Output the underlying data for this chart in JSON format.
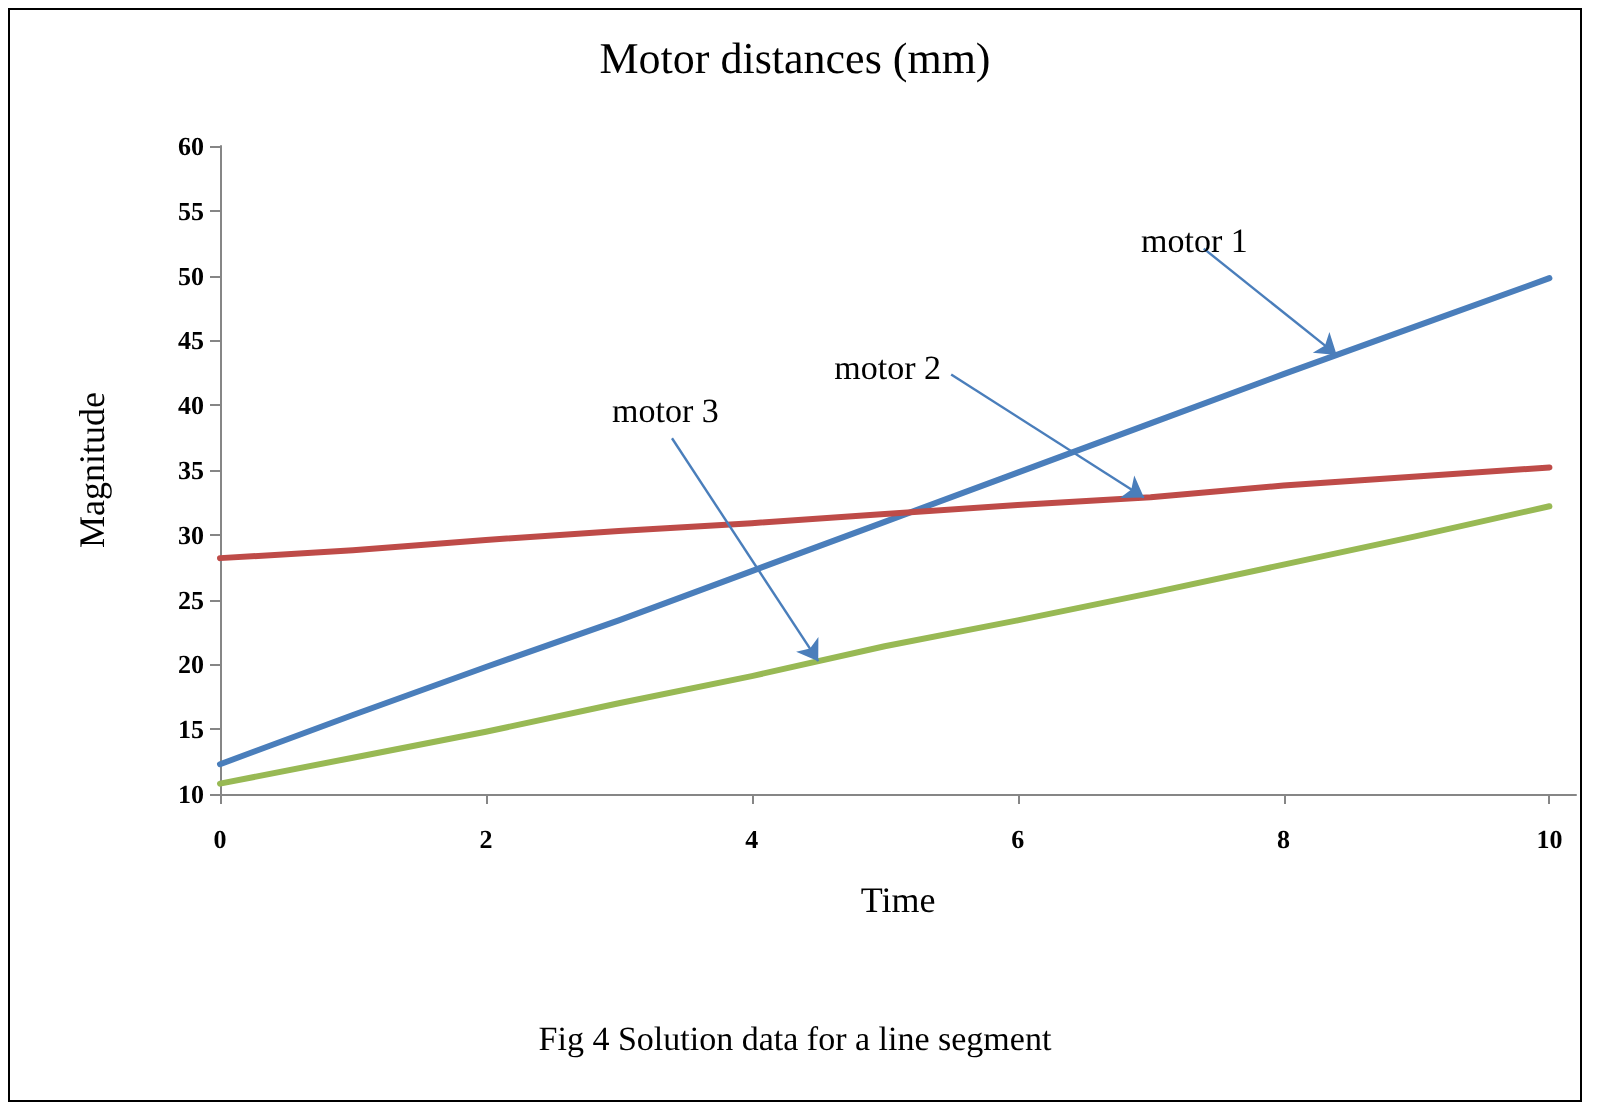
{
  "chart_data": {
    "type": "line",
    "title": "Motor distances (mm)",
    "xlabel": "Time",
    "ylabel": "Magnitude",
    "x": [
      0,
      1,
      2,
      3,
      4,
      5,
      6,
      7,
      8,
      9,
      10
    ],
    "series": [
      {
        "name": "motor 1",
        "color": "#4a7ebb",
        "values": [
          12.3,
          16.1,
          19.8,
          23.4,
          27.2,
          31.0,
          34.8,
          38.6,
          42.4,
          46.1,
          49.8
        ]
      },
      {
        "name": "motor 2",
        "color": "#be4b48",
        "values": [
          28.2,
          28.8,
          29.6,
          30.3,
          30.9,
          31.6,
          32.3,
          32.9,
          33.8,
          34.5,
          35.2
        ]
      },
      {
        "name": "motor 3",
        "color": "#98b954",
        "values": [
          10.8,
          12.8,
          14.8,
          17.0,
          19.1,
          21.4,
          23.4,
          25.5,
          27.7,
          29.9,
          32.2
        ]
      }
    ],
    "xlim": [
      0,
      10.2
    ],
    "xticks": [
      0,
      2,
      4,
      6,
      8,
      10
    ],
    "ylim": [
      10,
      60
    ],
    "yticks": [
      10,
      15,
      20,
      25,
      30,
      35,
      40,
      45,
      50,
      55,
      60
    ],
    "grid": false,
    "legend": false,
    "marker": "none",
    "line_style": "solid",
    "annotations": [
      "Fig 4 Solution data for a line segment"
    ]
  }
}
